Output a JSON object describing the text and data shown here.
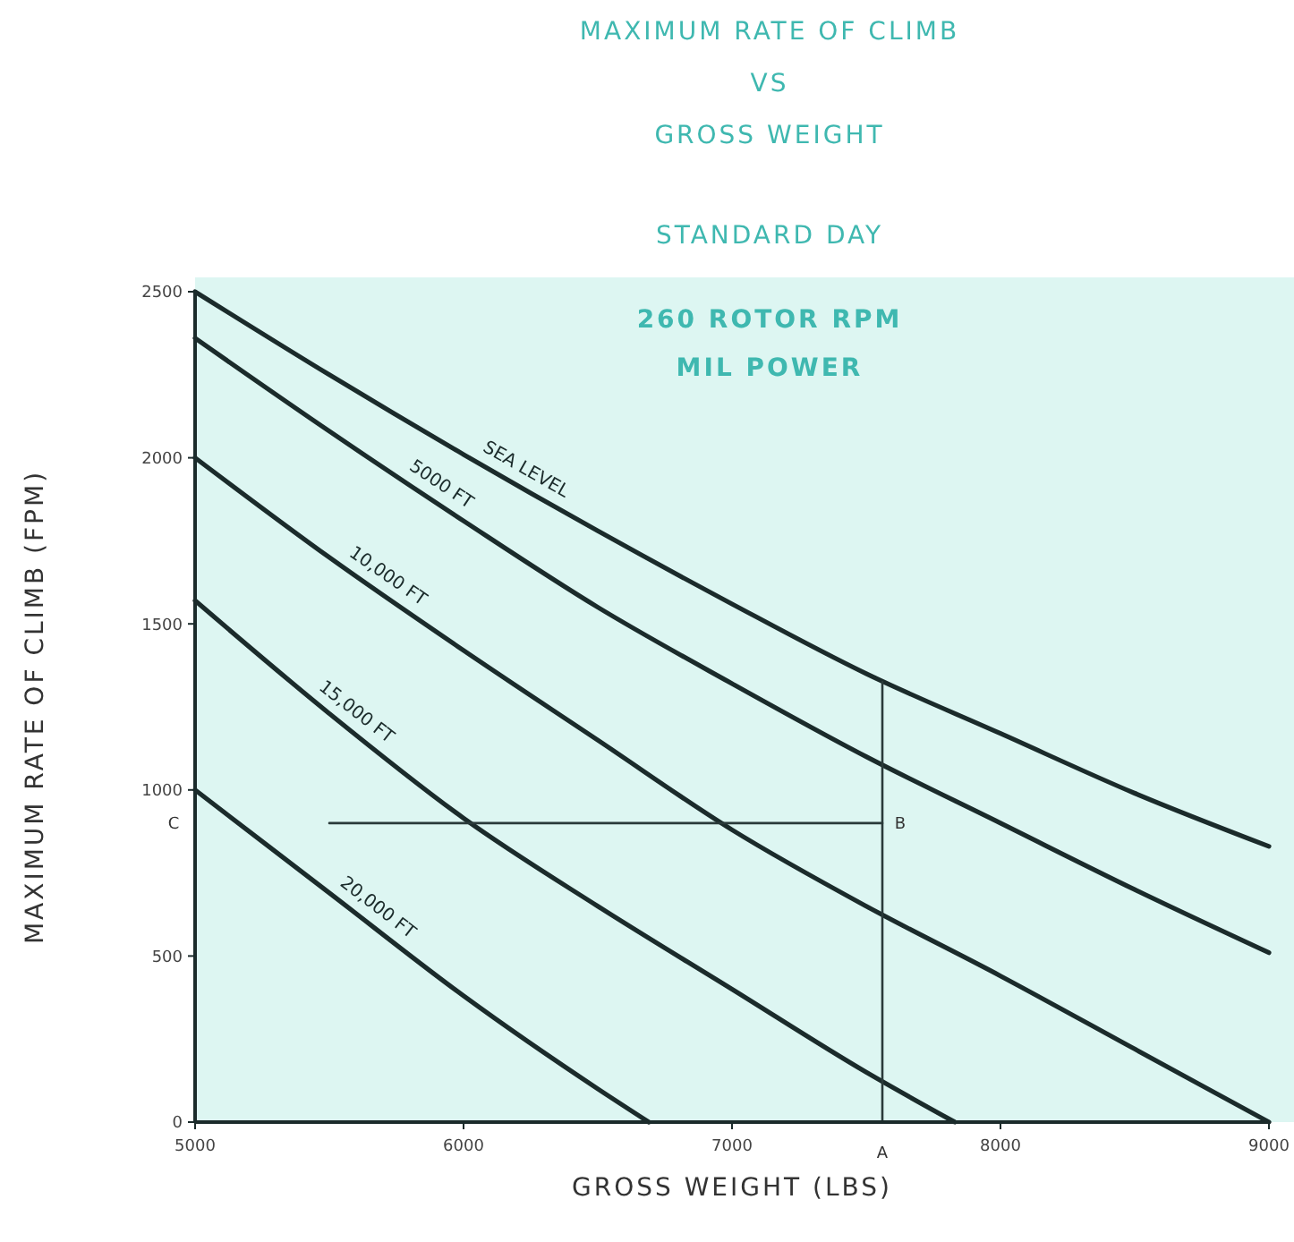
{
  "chart_data": {
    "type": "line",
    "title": "MAXIMUM RATE OF CLIMB\nVS\nGROSS WEIGHT",
    "subtitle": "STANDARD DAY",
    "xlabel": "GROSS WEIGHT (LBS)",
    "ylabel": "MAXIMUM RATE OF CLIMB (FPM)",
    "xlim": [
      5000,
      9000
    ],
    "xticks": [
      5000,
      6000,
      7000,
      8000,
      9000
    ],
    "ylim": [
      0,
      2500
    ],
    "yticks": [
      0,
      500,
      1000,
      1500,
      2000,
      2500
    ],
    "grid": false,
    "marker": "none",
    "line_style": "solid",
    "series": [
      {
        "name": "SEA LEVEL",
        "color": "#1b2b2b",
        "x": [
          5000,
          5500,
          6000,
          6500,
          7000,
          7500,
          8000,
          8500,
          9000
        ],
        "values": [
          2500,
          2250,
          2010,
          1780,
          1560,
          1350,
          1170,
          990,
          830
        ]
      },
      {
        "name": "5000 FT",
        "color": "#1b2b2b",
        "x": [
          5000,
          5500,
          6000,
          6500,
          7000,
          7500,
          8000,
          8500,
          9000
        ],
        "values": [
          2360,
          2080,
          1810,
          1550,
          1320,
          1100,
          900,
          700,
          510
        ]
      },
      {
        "name": "10,000 FT",
        "color": "#1b2b2b",
        "x": [
          5000,
          5500,
          6000,
          6500,
          7000,
          7500,
          8000,
          8500,
          9000
        ],
        "values": [
          2000,
          1700,
          1420,
          1150,
          880,
          650,
          440,
          220,
          0
        ]
      },
      {
        "name": "15,000 FT",
        "color": "#1b2b2b",
        "x": [
          5000,
          5500,
          6000,
          6500,
          7000,
          7500,
          7830
        ],
        "values": [
          1570,
          1230,
          915,
          650,
          400,
          150,
          0
        ]
      },
      {
        "name": "20,000 FT",
        "color": "#1b2b2b",
        "x": [
          5000,
          5500,
          6000,
          6500,
          6690
        ],
        "values": [
          1000,
          690,
          380,
          100,
          0
        ]
      },
      {
        "color": "#2a3a3a",
        "x": [
          7560,
          7560
        ],
        "values": [
          0,
          1325
        ]
      },
      {
        "color": "#2a3a3a",
        "x": [
          5500,
          7560
        ],
        "values": [
          900,
          900
        ]
      }
    ],
    "annotations": [
      "260 ROTOR RPM",
      "MIL POWER",
      {
        "text": "A",
        "x": 7560,
        "y": 0
      },
      {
        "text": "B",
        "x": 7560,
        "y": 900
      },
      "C"
    ]
  }
}
